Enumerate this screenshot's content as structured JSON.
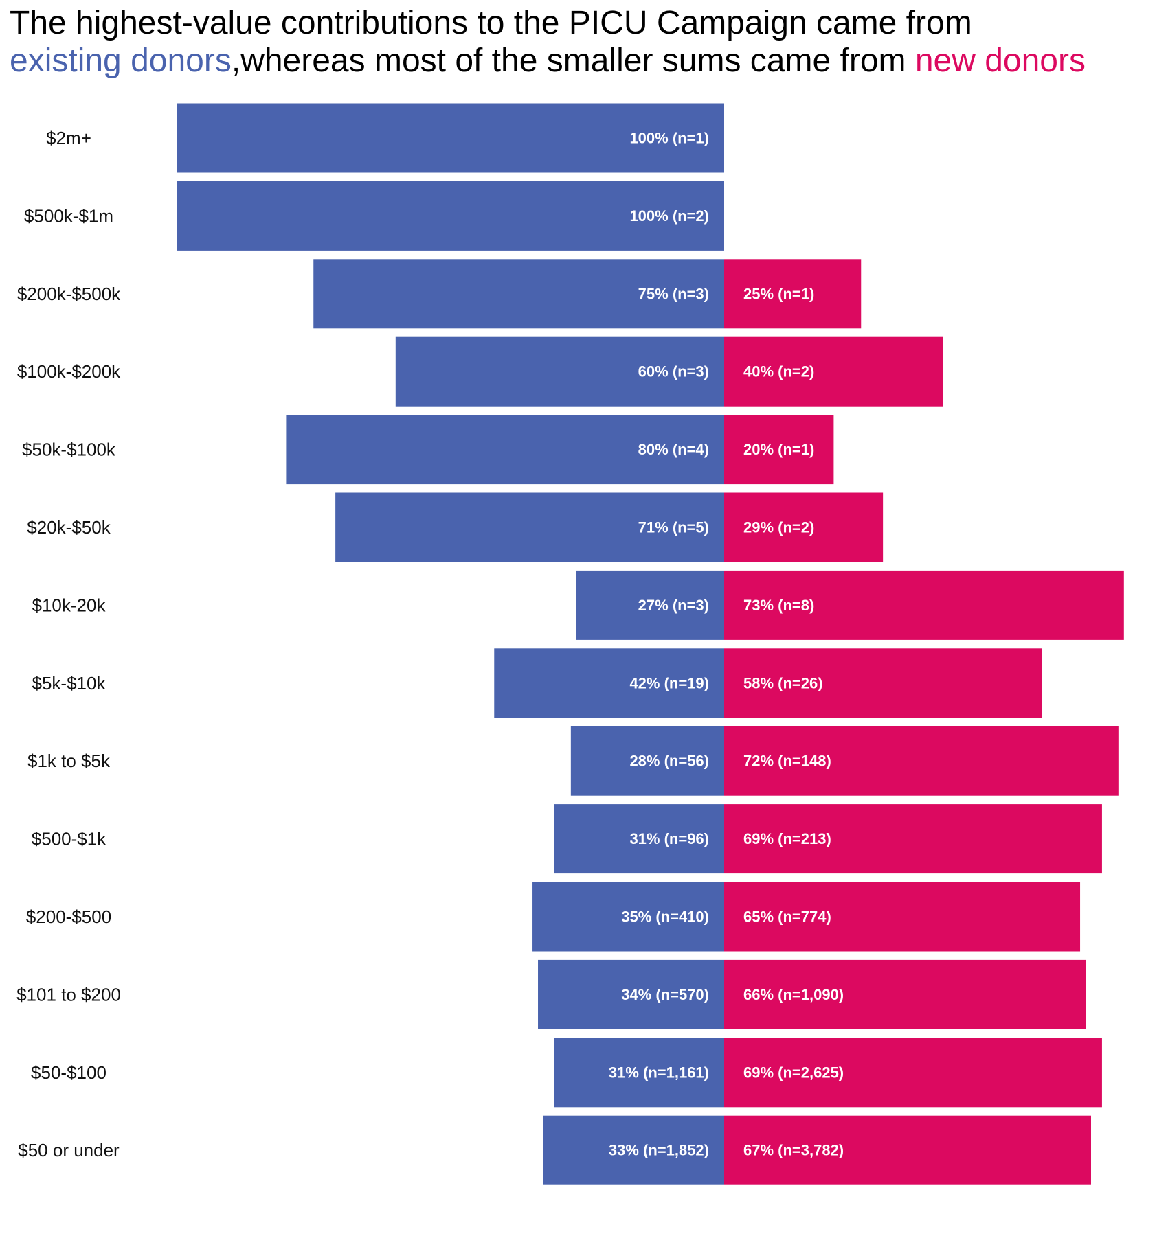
{
  "title": {
    "line1": "The highest-value contributions to the PICU Campaign came from",
    "existing_label": "existing donors",
    "middle": ",whereas most of the smaller sums came from ",
    "new_label": "new donors"
  },
  "colors": {
    "existing": "#4a63ae",
    "new": "#dc0960",
    "text": "#111111",
    "bar_label": "#ffffff"
  },
  "chart_data": {
    "type": "bar",
    "orientation": "horizontal-diverging",
    "title": "The highest-value contributions to the PICU Campaign came from existing donors,whereas most of the smaller sums came from new donors",
    "xlabel": "",
    "ylabel": "",
    "xlim": [
      -100,
      100
    ],
    "grid": false,
    "legend": "none",
    "categories": [
      "$2m+",
      "$500k-$1m",
      "$200k-$500k",
      "$100k-$200k",
      "$50k-$100k",
      "$20k-$50k",
      "$10k-20k",
      "$5k-$10k",
      "$1k to $5k",
      "$500-$1k",
      "$200-$500",
      "$101 to $200",
      "$50-$100",
      "$50 or under"
    ],
    "series": [
      {
        "key": "existing",
        "values": [
          100,
          100,
          75,
          60,
          80,
          71,
          27,
          42,
          28,
          31,
          35,
          34,
          31,
          33
        ],
        "counts": [
          1,
          2,
          3,
          3,
          4,
          5,
          3,
          19,
          56,
          96,
          410,
          570,
          1161,
          1852
        ],
        "labels": [
          "100% (n=1)",
          "100% (n=2)",
          "75% (n=3)",
          "60% (n=3)",
          "80% (n=4)",
          "71% (n=5)",
          "27% (n=3)",
          "42% (n=19)",
          "28% (n=56)",
          "31% (n=96)",
          "35% (n=410)",
          "34% (n=570)",
          "31% (n=1,161)",
          "33% (n=1,852)"
        ]
      },
      {
        "key": "new",
        "values": [
          0,
          0,
          25,
          40,
          20,
          29,
          73,
          58,
          72,
          69,
          65,
          66,
          69,
          67
        ],
        "counts": [
          0,
          0,
          1,
          2,
          1,
          2,
          8,
          26,
          148,
          213,
          774,
          1090,
          2625,
          3782
        ],
        "labels": [
          "",
          "",
          "25% (n=1)",
          "40% (n=2)",
          "20% (n=1)",
          "29% (n=2)",
          "73% (n=8)",
          "58% (n=26)",
          "72% (n=148)",
          "69% (n=213)",
          "65% (n=774)",
          "66% (n=1,090)",
          "69% (n=2,625)",
          "67% (n=3,782)"
        ]
      }
    ]
  }
}
